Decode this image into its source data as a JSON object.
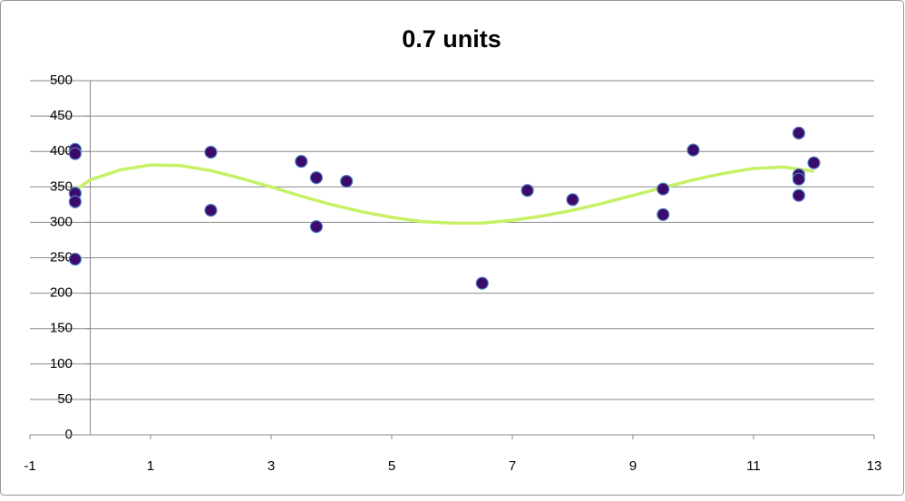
{
  "chart_data": {
    "type": "scatter",
    "title": "0.7 units",
    "series": [
      {
        "color": "#3b0a6b",
        "x": [
          -0.25,
          -0.25,
          -0.25,
          -0.25,
          -0.25,
          2,
          2,
          3.5,
          3.75,
          3.75,
          4.25,
          6.5,
          7.25,
          8,
          9.5,
          9.5,
          10,
          11.75,
          11.75,
          11.75,
          11.75,
          12
        ],
        "values": [
          403,
          397,
          341,
          329,
          248,
          399,
          317,
          386,
          363,
          294,
          358,
          214,
          345,
          332,
          347,
          311,
          402,
          426,
          367,
          361,
          338,
          384
        ]
      }
    ],
    "trendline": {
      "color": "#c6f066",
      "x": [
        -0.25,
        0,
        0.5,
        1,
        1.5,
        2,
        2.5,
        3,
        3.5,
        4,
        4.5,
        5,
        5.5,
        6,
        6.5,
        7,
        7.5,
        8,
        8.5,
        9,
        9.5,
        10,
        10.5,
        11,
        11.5,
        12
      ],
      "values": [
        345,
        360,
        374,
        381,
        380,
        373,
        362,
        350,
        337,
        325,
        315,
        307,
        301,
        299,
        299,
        303,
        309,
        317,
        327,
        338,
        349,
        360,
        369,
        376,
        378,
        372
      ]
    },
    "xlim": [
      -1,
      13
    ],
    "xticks": [
      -1,
      1,
      3,
      5,
      7,
      9,
      11,
      13
    ],
    "ylim": [
      0,
      500
    ],
    "yticks": [
      0,
      50,
      100,
      150,
      200,
      250,
      300,
      350,
      400,
      450,
      500
    ],
    "grid": true
  }
}
